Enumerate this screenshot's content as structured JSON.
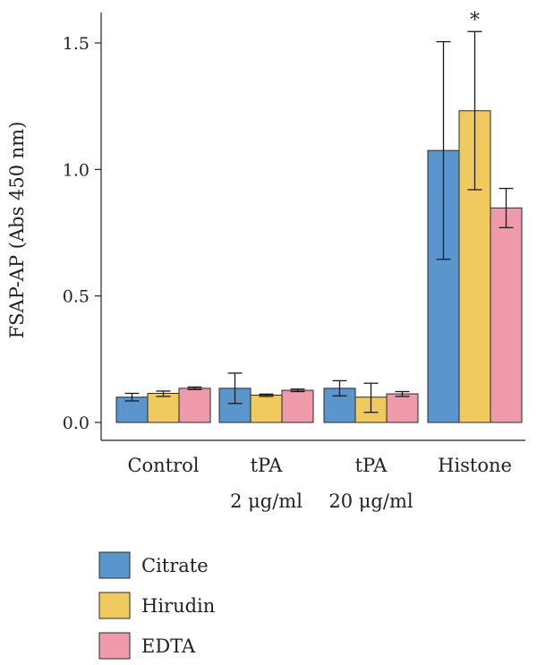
{
  "chart_data": {
    "type": "bar",
    "ylabel": "FSAP-AP (Abs 450 nm)",
    "ylim": [
      0,
      1.6
    ],
    "yticks": [
      "0.0",
      "0.5",
      "1.0",
      "1.5"
    ],
    "ytick_values": [
      0,
      0.5,
      1.0,
      1.5
    ],
    "categories": [
      "Control",
      "tPA",
      "tPA",
      "Histone"
    ],
    "group_sublabels": [
      "",
      "2 μg/ml",
      "20 μg/ml",
      ""
    ],
    "series": [
      {
        "name": "Citrate",
        "color": "#5b95cd",
        "values": [
          0.1,
          0.135,
          0.135,
          1.075
        ],
        "error_low": [
          0.085,
          0.075,
          0.105,
          0.645
        ],
        "error_high": [
          0.115,
          0.195,
          0.165,
          1.505
        ]
      },
      {
        "name": "Hirudin",
        "color": "#f1ca5f",
        "values": [
          0.115,
          0.108,
          0.1,
          1.232
        ],
        "error_low": [
          0.103,
          0.103,
          0.04,
          0.92
        ],
        "error_high": [
          0.124,
          0.112,
          0.155,
          1.545
        ]
      },
      {
        "name": "EDTA",
        "color": "#ee9aaa",
        "values": [
          0.135,
          0.127,
          0.113,
          0.848
        ],
        "error_low": [
          0.13,
          0.122,
          0.103,
          0.77
        ],
        "error_high": [
          0.14,
          0.132,
          0.122,
          0.925
        ]
      }
    ],
    "annotations": [
      {
        "text": "*",
        "category_index": 3,
        "series_index": 1
      }
    ],
    "legend": {
      "position": "bottom-left",
      "entries": [
        "Citrate",
        "Hirudin",
        "EDTA"
      ]
    },
    "grid": false
  }
}
